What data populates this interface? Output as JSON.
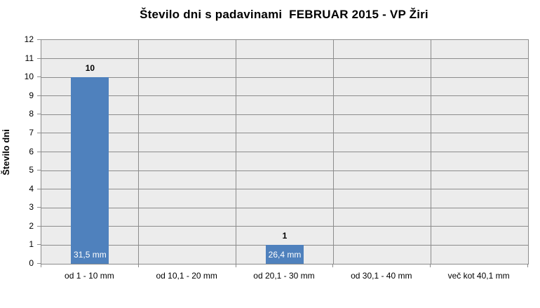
{
  "chart_data": {
    "type": "bar",
    "title": "Število dni s padavinami  FEBRUAR 2015 - VP Žiri",
    "ylabel": "Število dni",
    "xlabel": "",
    "categories": [
      "od 1 - 10 mm",
      "od 10,1 - 20 mm",
      "od 20,1 - 30 mm",
      "od 30,1 - 40 mm",
      "več kot 40,1 mm"
    ],
    "values": [
      10,
      0,
      1,
      0,
      0
    ],
    "value_labels": [
      "10",
      "",
      "1",
      "",
      ""
    ],
    "inside_labels": [
      "31,5 mm",
      "",
      "26,4 mm",
      "",
      ""
    ],
    "ylim": [
      0,
      12
    ],
    "yticks": [
      0,
      1,
      2,
      3,
      4,
      5,
      6,
      7,
      8,
      9,
      10,
      11,
      12
    ],
    "grid": true,
    "legend": "none",
    "colors": {
      "bar": "#4f81bd",
      "plot_background": "#ececec",
      "gridline": "#8c8c8c",
      "text": "#000000",
      "inside_label_text": "#ffffff"
    }
  }
}
